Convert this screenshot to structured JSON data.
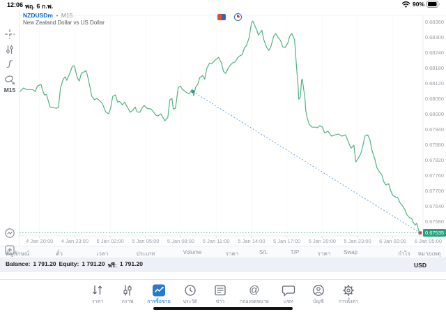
{
  "status_bar": {
    "time": "12:06",
    "date": "พฤ. 6 ก.พ.",
    "battery_percent": "90%"
  },
  "chart_header": {
    "symbol": "NZDUSDm",
    "separator": "•",
    "timeframe": "M15",
    "description": "New Zealand Dollar vs US Dollar"
  },
  "sidebar": {
    "timeframe_label": "M15",
    "function_glyph": "ƒ",
    "icons": [
      "crosshair-icon",
      "indicators-icon",
      "function-icon",
      "objects-icon",
      "chart-type-icon",
      "add-order-icon"
    ]
  },
  "chart_data": {
    "type": "line",
    "title": "NZDUSDm M15",
    "subtitle": "New Zealand Dollar vs US Dollar",
    "timeframe": "M15",
    "x_unit": "hours since 4 Jan 20:00",
    "xlim": [
      -1.7,
      32.56
    ],
    "ylim": [
      0.67523,
      0.68385
    ],
    "grid": "faint-vertical",
    "legend": "none",
    "line_color": "#4db380",
    "x_ticks": [
      {
        "h": 0,
        "label": "4 Jan 20:00"
      },
      {
        "h": 3,
        "label": "4 Jan 23:00"
      },
      {
        "h": 6,
        "label": "5 Jan 02:00"
      },
      {
        "h": 9,
        "label": "5 Jan 05:00"
      },
      {
        "h": 12,
        "label": "5 Jan 08:00"
      },
      {
        "h": 15,
        "label": "5 Jan 11:00"
      },
      {
        "h": 18,
        "label": "5 Jan 14:00"
      },
      {
        "h": 21,
        "label": "5 Jan 17:00"
      },
      {
        "h": 24,
        "label": "5 Jan 20:00"
      },
      {
        "h": 27,
        "label": "5 Jan 23:00"
      },
      {
        "h": 30,
        "label": "6 Jan 02:00"
      },
      {
        "h": 33,
        "label": "6 Jan 05:00"
      }
    ],
    "y_ticks": [
      0.6836,
      0.683,
      0.6824,
      0.6818,
      0.6812,
      0.6806,
      0.68,
      0.6794,
      0.6788,
      0.6782,
      0.6776,
      0.677,
      0.6764,
      0.6758
    ],
    "current_price": {
      "value": 0.67535,
      "label": "0.67535",
      "color": "#23a17c"
    },
    "trendline": {
      "style": "dotted",
      "color": "#5b9bd5",
      "start": [
        13.02,
        0.68087
      ],
      "end": [
        32.31,
        0.67535
      ],
      "start_marker": "blue-dot",
      "end_marker": "red-square"
    },
    "series": [
      {
        "name": "NZDUSD M15 close",
        "points": [
          [
            -1.66,
            0.68087
          ],
          [
            -1.36,
            0.68101
          ],
          [
            -1.07,
            0.68095
          ],
          [
            -0.59,
            0.68095
          ],
          [
            -0.36,
            0.68087
          ],
          [
            -0.18,
            0.68109
          ],
          [
            0.12,
            0.68115
          ],
          [
            0.3,
            0.68087
          ],
          [
            0.41,
            0.68074
          ],
          [
            0.59,
            0.68076
          ],
          [
            0.89,
            0.68027
          ],
          [
            1.42,
            0.68022
          ],
          [
            1.6,
            0.68025
          ],
          [
            1.78,
            0.68101
          ],
          [
            2.01,
            0.68136
          ],
          [
            2.19,
            0.68145
          ],
          [
            2.31,
            0.68131
          ],
          [
            2.49,
            0.6815
          ],
          [
            2.78,
            0.68185
          ],
          [
            2.96,
            0.68188
          ],
          [
            3.2,
            0.68142
          ],
          [
            3.37,
            0.68128
          ],
          [
            3.55,
            0.68158
          ],
          [
            3.96,
            0.68169
          ],
          [
            4.14,
            0.68136
          ],
          [
            4.44,
            0.68068
          ],
          [
            4.67,
            0.68055
          ],
          [
            4.85,
            0.6806
          ],
          [
            5.03,
            0.68055
          ],
          [
            5.33,
            0.68041
          ],
          [
            5.62,
            0.68008
          ],
          [
            5.86,
            0.68
          ],
          [
            6.04,
            0.68022
          ],
          [
            6.21,
            0.68068
          ],
          [
            6.45,
            0.68074
          ],
          [
            6.63,
            0.68046
          ],
          [
            6.8,
            0.68049
          ],
          [
            7.04,
            0.68035
          ],
          [
            7.22,
            0.68046
          ],
          [
            7.51,
            0.68022
          ],
          [
            7.69,
            0.68006
          ],
          [
            7.93,
            0.68014
          ],
          [
            8.11,
            0.68027
          ],
          [
            8.28,
            0.68008
          ],
          [
            8.52,
            0.68006
          ],
          [
            8.7,
            0.68022
          ],
          [
            8.88,
            0.68033
          ],
          [
            9.11,
            0.68022
          ],
          [
            9.47,
            0.68019
          ],
          [
            9.7,
            0.68006
          ],
          [
            9.88,
            0.67995
          ],
          [
            10.06,
            0.67992
          ],
          [
            10.3,
            0.68
          ],
          [
            10.47,
            0.67986
          ],
          [
            10.65,
            0.67973
          ],
          [
            10.89,
            0.67986
          ],
          [
            11.07,
            0.68055
          ],
          [
            11.24,
            0.6806
          ],
          [
            11.36,
            0.68019
          ],
          [
            11.54,
            0.68022
          ],
          [
            11.78,
            0.68104
          ],
          [
            11.95,
            0.68109
          ],
          [
            12.13,
            0.68096
          ],
          [
            12.37,
            0.68087
          ],
          [
            12.54,
            0.68082
          ],
          [
            12.72,
            0.68079
          ],
          [
            12.96,
            0.68096
          ],
          [
            13.02,
            0.68087
          ],
          [
            13.08,
            0.68071
          ],
          [
            13.25,
            0.68104
          ],
          [
            13.43,
            0.68115
          ],
          [
            13.61,
            0.68142
          ],
          [
            13.85,
            0.6815
          ],
          [
            14.02,
            0.68136
          ],
          [
            14.2,
            0.68177
          ],
          [
            14.44,
            0.68199
          ],
          [
            14.62,
            0.68196
          ],
          [
            14.91,
            0.6821
          ],
          [
            15.21,
            0.68221
          ],
          [
            15.44,
            0.68199
          ],
          [
            15.62,
            0.68166
          ],
          [
            15.8,
            0.68158
          ],
          [
            16.04,
            0.6818
          ],
          [
            16.21,
            0.68191
          ],
          [
            16.39,
            0.68199
          ],
          [
            16.63,
            0.68204
          ],
          [
            16.8,
            0.68218
          ],
          [
            16.98,
            0.68226
          ],
          [
            17.22,
            0.68232
          ],
          [
            17.4,
            0.68259
          ],
          [
            17.57,
            0.68267
          ],
          [
            17.81,
            0.683
          ],
          [
            17.99,
            0.68355
          ],
          [
            18.11,
            0.68363
          ],
          [
            18.28,
            0.68344
          ],
          [
            18.46,
            0.68327
          ],
          [
            18.58,
            0.68308
          ],
          [
            18.7,
            0.68316
          ],
          [
            18.88,
            0.68327
          ],
          [
            19.05,
            0.68289
          ],
          [
            19.29,
            0.68259
          ],
          [
            19.47,
            0.68248
          ],
          [
            19.64,
            0.68262
          ],
          [
            19.88,
            0.68303
          ],
          [
            20.06,
            0.68314
          ],
          [
            20.24,
            0.683
          ],
          [
            20.47,
            0.68286
          ],
          [
            20.65,
            0.68262
          ],
          [
            20.83,
            0.68259
          ],
          [
            21.07,
            0.68275
          ],
          [
            21.24,
            0.68303
          ],
          [
            21.42,
            0.68314
          ],
          [
            21.66,
            0.68289
          ],
          [
            21.72,
            0.68248
          ],
          [
            21.83,
            0.68177
          ],
          [
            21.95,
            0.68112
          ],
          [
            22.01,
            0.68057
          ],
          [
            22.13,
            0.68063
          ],
          [
            22.25,
            0.68131
          ],
          [
            22.31,
            0.68136
          ],
          [
            22.43,
            0.68096
          ],
          [
            22.54,
            0.68057
          ],
          [
            22.6,
            0.68014
          ],
          [
            22.72,
            0.67986
          ],
          [
            22.9,
            0.67959
          ],
          [
            23.14,
            0.67948
          ],
          [
            23.43,
            0.67948
          ],
          [
            23.61,
            0.67946
          ],
          [
            23.79,
            0.67954
          ],
          [
            24.02,
            0.67948
          ],
          [
            24.2,
            0.67926
          ],
          [
            24.5,
            0.67932
          ],
          [
            24.79,
            0.67913
          ],
          [
            25.09,
            0.67918
          ],
          [
            25.38,
            0.67921
          ],
          [
            25.68,
            0.67913
          ],
          [
            25.98,
            0.67918
          ],
          [
            26.27,
            0.67885
          ],
          [
            26.45,
            0.67866
          ],
          [
            26.69,
            0.67877
          ],
          [
            26.86,
            0.67812
          ],
          [
            27.04,
            0.67825
          ],
          [
            27.28,
            0.67845
          ],
          [
            27.46,
            0.67877
          ],
          [
            27.63,
            0.67913
          ],
          [
            27.87,
            0.67918
          ],
          [
            28.05,
            0.67899
          ],
          [
            28.22,
            0.67858
          ],
          [
            28.46,
            0.67825
          ],
          [
            28.64,
            0.6779
          ],
          [
            28.82,
            0.67776
          ],
          [
            29.05,
            0.67763
          ],
          [
            29.23,
            0.67735
          ],
          [
            29.41,
            0.67722
          ],
          [
            29.64,
            0.67727
          ],
          [
            29.82,
            0.677
          ],
          [
            30.0,
            0.67681
          ],
          [
            30.24,
            0.67675
          ],
          [
            30.41,
            0.67673
          ],
          [
            30.59,
            0.67654
          ],
          [
            30.83,
            0.6764
          ],
          [
            31.01,
            0.67627
          ],
          [
            31.18,
            0.67607
          ],
          [
            31.42,
            0.67594
          ],
          [
            31.6,
            0.67591
          ],
          [
            31.72,
            0.67577
          ],
          [
            31.89,
            0.67566
          ],
          [
            32.01,
            0.67572
          ],
          [
            32.07,
            0.67564
          ],
          [
            32.19,
            0.67545
          ],
          [
            32.31,
            0.67531
          ]
        ]
      }
    ]
  },
  "positions_table": {
    "columns": [
      "สัญลักษณ์",
      "ตั๋ว",
      "เวลา",
      "ประเภท",
      "Volume",
      "ราคา",
      "S/L",
      "T/P",
      "ราคา",
      "Swap",
      "กำไร",
      "หมายเหตุ"
    ]
  },
  "account_bar": {
    "balance_label": "Balance:",
    "balance_value": "1 791.20",
    "equity_label": "Equity:",
    "equity_value": "1 791.20",
    "free_label": "ฟรี:",
    "free_value": "1 791.20",
    "currency": "USD"
  },
  "tab_bar": {
    "active_index": 2,
    "at_glyph": "@",
    "tabs": [
      {
        "label": "ราคา"
      },
      {
        "label": "กราฟ"
      },
      {
        "label": "การซื้อขาย"
      },
      {
        "label": "ประวัติ"
      },
      {
        "label": "ข่าว"
      },
      {
        "label": "กล่องจดหมาย"
      },
      {
        "label": "แชท"
      },
      {
        "label": "บัญชี"
      },
      {
        "label": "การตั้งค่า"
      }
    ]
  }
}
